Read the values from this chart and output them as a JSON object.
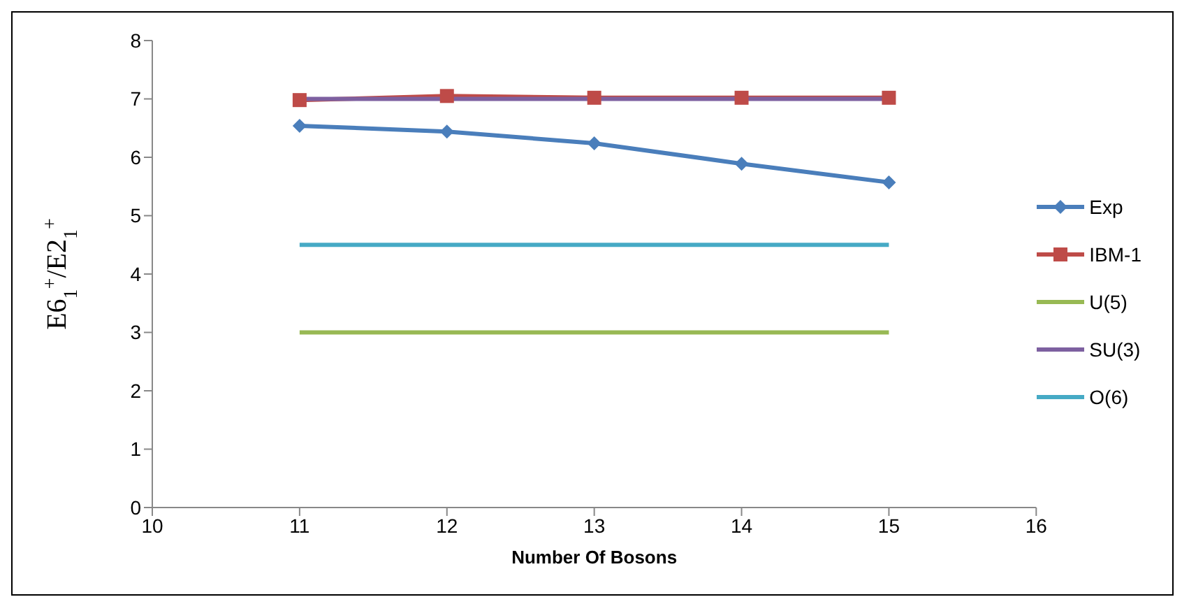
{
  "chart_data": {
    "type": "line",
    "xlabel": "Number Of Bosons",
    "ylabel": "E6$_{1}$$^{+}$/E2$_{1}$$^{+}$",
    "x": [
      11,
      12,
      13,
      14,
      15
    ],
    "series": [
      {
        "name": "Exp",
        "color": "#4a7ebb",
        "marker": "diamond",
        "values": [
          6.54,
          6.44,
          6.24,
          5.89,
          5.57
        ]
      },
      {
        "name": "IBM-1",
        "color": "#be4b48",
        "marker": "square",
        "values": [
          6.98,
          7.05,
          7.02,
          7.02,
          7.02
        ]
      },
      {
        "name": "U(5)",
        "color": "#98b954",
        "values": [
          3,
          3,
          3,
          3,
          3
        ]
      },
      {
        "name": "SU(3)",
        "color": "#7d60a0",
        "values": [
          7,
          7,
          7,
          7,
          7
        ]
      },
      {
        "name": "O(6)",
        "color": "#46aac5",
        "values": [
          4.5,
          4.5,
          4.5,
          4.5,
          4.5
        ]
      }
    ],
    "xlim": [
      10,
      16
    ],
    "xticks": [
      10,
      11,
      12,
      13,
      14,
      15,
      16
    ],
    "ylim": [
      0,
      8
    ],
    "yticks": [
      0,
      1,
      2,
      3,
      4,
      5,
      6,
      7,
      8
    ],
    "grid": false,
    "legend": "right",
    "line_style": "solid"
  }
}
